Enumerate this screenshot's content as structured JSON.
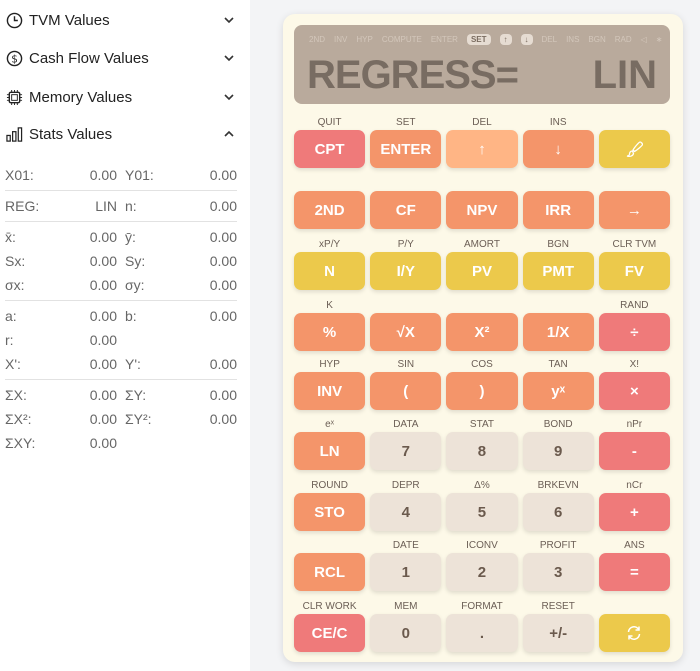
{
  "sidebar": {
    "sections": [
      {
        "label": "TVM Values",
        "icon": "clock-icon",
        "expanded": false
      },
      {
        "label": "Cash Flow Values",
        "icon": "dollar-icon",
        "expanded": false
      },
      {
        "label": "Memory Values",
        "icon": "chip-icon",
        "expanded": false
      },
      {
        "label": "Stats Values",
        "icon": "bar-chart-icon",
        "expanded": true
      }
    ],
    "stats": [
      [
        [
          "X01:",
          "0.00",
          "Y01:",
          "0.00"
        ]
      ],
      [
        [
          "REG:",
          "LIN",
          "n:",
          "0.00"
        ]
      ],
      [
        [
          "x̄:",
          "0.00",
          "ȳ:",
          "0.00"
        ],
        [
          "Sx:",
          "0.00",
          "Sy:",
          "0.00"
        ],
        [
          "σx:",
          "0.00",
          "σy:",
          "0.00"
        ]
      ],
      [
        [
          "a:",
          "0.00",
          "b:",
          "0.00"
        ],
        [
          "r:",
          "0.00",
          "",
          ""
        ],
        [
          "X':",
          "0.00",
          "Y':",
          "0.00"
        ]
      ],
      [
        [
          "ΣX:",
          "0.00",
          "ΣY:",
          "0.00"
        ],
        [
          "ΣX²:",
          "0.00",
          "ΣY²:",
          "0.00"
        ],
        [
          "ΣXY:",
          "0.00",
          "",
          ""
        ]
      ]
    ]
  },
  "display": {
    "indicators": [
      "2ND",
      "INV",
      "HYP",
      "COMPUTE",
      "ENTER",
      "SET",
      "↑",
      "↓",
      "DEL",
      "INS",
      "BGN",
      "RAD",
      "◁",
      "∗"
    ],
    "active_indicators": [
      "SET",
      "↑",
      "↓"
    ],
    "main": "REGRESS=",
    "value": "LIN"
  },
  "colors": {
    "red": "#ef7a7a",
    "orange": "#f4956a",
    "light_orange": "#ffb585",
    "yellow": "#ecc94b",
    "gray": "#ede3d8",
    "display": "#b9aa9c",
    "panel": "#fdf9e8"
  },
  "keys": [
    [
      [
        "QUIT",
        "CPT",
        "red"
      ],
      [
        "SET",
        "ENTER",
        "org"
      ],
      [
        "DEL",
        "↑",
        "lorg"
      ],
      [
        "INS",
        "↓",
        "org"
      ],
      [
        "",
        "🖌",
        "yel"
      ]
    ],
    [
      [
        "",
        "2ND",
        "org"
      ],
      [
        "",
        "CF",
        "org"
      ],
      [
        "",
        "NPV",
        "org"
      ],
      [
        "",
        "IRR",
        "org"
      ],
      [
        "",
        "→",
        "org"
      ]
    ],
    [
      [
        "xP/Y",
        "N",
        "yel"
      ],
      [
        "P/Y",
        "I/Y",
        "yel"
      ],
      [
        "AMORT",
        "PV",
        "yel"
      ],
      [
        "BGN",
        "PMT",
        "yel"
      ],
      [
        "CLR TVM",
        "FV",
        "yel"
      ]
    ],
    [
      [
        "K",
        "%",
        "org"
      ],
      [
        "",
        "√X",
        "org"
      ],
      [
        "",
        "X²",
        "org"
      ],
      [
        "",
        "1/X",
        "org"
      ],
      [
        "RAND",
        "÷",
        "red"
      ]
    ],
    [
      [
        "HYP",
        "INV",
        "org"
      ],
      [
        "SIN",
        "(",
        "org"
      ],
      [
        "COS",
        ")",
        "org"
      ],
      [
        "TAN",
        "yˣ",
        "org"
      ],
      [
        "X!",
        "×",
        "red"
      ]
    ],
    [
      [
        "eˣ",
        "LN",
        "org"
      ],
      [
        "DATA",
        "7",
        "gry"
      ],
      [
        "STAT",
        "8",
        "gry"
      ],
      [
        "BOND",
        "9",
        "gry"
      ],
      [
        "nPr",
        "-",
        "red"
      ]
    ],
    [
      [
        "ROUND",
        "STO",
        "org"
      ],
      [
        "DEPR",
        "4",
        "gry"
      ],
      [
        "Δ%",
        "5",
        "gry"
      ],
      [
        "BRKEVN",
        "6",
        "gry"
      ],
      [
        "nCr",
        "+",
        "red"
      ]
    ],
    [
      [
        "",
        "RCL",
        "org"
      ],
      [
        "DATE",
        "1",
        "gry"
      ],
      [
        "ICONV",
        "2",
        "gry"
      ],
      [
        "PROFIT",
        "3",
        "gry"
      ],
      [
        "ANS",
        "=",
        "red"
      ]
    ],
    [
      [
        "CLR WORK",
        "CE/C",
        "red"
      ],
      [
        "MEM",
        "0",
        "gry"
      ],
      [
        "FORMAT",
        ".",
        "gry"
      ],
      [
        "RESET",
        "+/-",
        "gry"
      ],
      [
        "",
        "⟳",
        "yel"
      ]
    ]
  ]
}
